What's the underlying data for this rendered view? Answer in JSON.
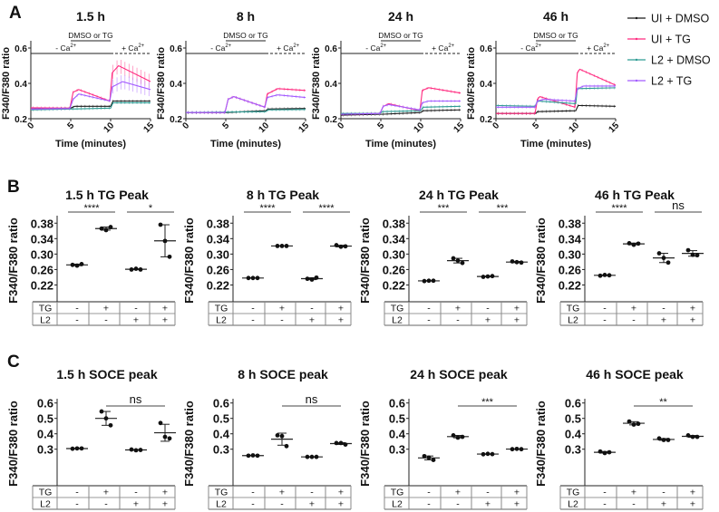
{
  "panel_letters": [
    "A",
    "B",
    "C"
  ],
  "ylabel": "F340/F380 ratio",
  "chart_data": {
    "traces": {
      "type": "line",
      "xlabel": "Time (minutes)",
      "ylabel": "F340/F380 ratio",
      "xlim": [
        0,
        15
      ],
      "ylim": [
        0.2,
        0.6
      ],
      "xticks": [
        "0",
        "5",
        "10",
        "15"
      ],
      "yticks": [
        "0.2",
        "0.4",
        "0.6"
      ],
      "annotation_treatment": "DMSO or TG",
      "annotation_minus_ca": "- Ca",
      "annotation_plus_ca": "+ Ca",
      "ca_superscript": "2+",
      "legend": [
        {
          "name": "UI + DMSO",
          "color": "#1a1a1a"
        },
        {
          "name": "UI + TG",
          "color": "#ff2a7f"
        },
        {
          "name": "L2 + DMSO",
          "color": "#2f9c94"
        },
        {
          "name": "L2 + TG",
          "color": "#a35cff"
        }
      ],
      "panels": [
        {
          "title": "1.5 h",
          "series": [
            [
              [
                0,
                0.255
              ],
              [
                5,
                0.26
              ],
              [
                5.5,
                0.27
              ],
              [
                10,
                0.27
              ],
              [
                10.3,
                0.3
              ],
              [
                15,
                0.3
              ]
            ],
            [
              [
                0,
                0.262
              ],
              [
                4.9,
                0.26
              ],
              [
                5.3,
                0.35
              ],
              [
                6,
                0.365
              ],
              [
                9.9,
                0.3
              ],
              [
                10.2,
                0.46
              ],
              [
                11,
                0.5
              ],
              [
                15,
                0.41
              ]
            ],
            [
              [
                0,
                0.25
              ],
              [
                5,
                0.255
              ],
              [
                10,
                0.26
              ],
              [
                10.3,
                0.29
              ],
              [
                15,
                0.29
              ]
            ],
            [
              [
                0,
                0.255
              ],
              [
                4.9,
                0.258
              ],
              [
                5.3,
                0.31
              ],
              [
                6,
                0.34
              ],
              [
                9.9,
                0.3
              ],
              [
                10.2,
                0.38
              ],
              [
                11.5,
                0.41
              ],
              [
                15,
                0.365
              ]
            ]
          ]
        },
        {
          "title": "8 h",
          "series": [
            [
              [
                0,
                0.235
              ],
              [
                5,
                0.235
              ],
              [
                10,
                0.245
              ],
              [
                10.3,
                0.255
              ],
              [
                15,
                0.258
              ]
            ],
            [
              [
                0,
                0.235
              ],
              [
                4.9,
                0.235
              ],
              [
                5.3,
                0.31
              ],
              [
                6,
                0.325
              ],
              [
                9.9,
                0.265
              ],
              [
                10.2,
                0.34
              ],
              [
                11.5,
                0.37
              ],
              [
                15,
                0.36
              ]
            ],
            [
              [
                0,
                0.235
              ],
              [
                10,
                0.24
              ],
              [
                10.3,
                0.25
              ],
              [
                15,
                0.252
              ]
            ],
            [
              [
                0,
                0.235
              ],
              [
                4.9,
                0.235
              ],
              [
                5.3,
                0.31
              ],
              [
                6,
                0.325
              ],
              [
                9.9,
                0.265
              ],
              [
                10.2,
                0.32
              ],
              [
                11.5,
                0.335
              ],
              [
                15,
                0.32
              ]
            ]
          ]
        },
        {
          "title": "24 h",
          "series": [
            [
              [
                0,
                0.22
              ],
              [
                5,
                0.225
              ],
              [
                10,
                0.235
              ],
              [
                10.3,
                0.245
              ],
              [
                15,
                0.25
              ]
            ],
            [
              [
                0,
                0.225
              ],
              [
                4.9,
                0.23
              ],
              [
                5.3,
                0.27
              ],
              [
                6,
                0.285
              ],
              [
                9.9,
                0.245
              ],
              [
                10.2,
                0.36
              ],
              [
                11,
                0.375
              ],
              [
                15,
                0.345
              ]
            ],
            [
              [
                0,
                0.23
              ],
              [
                4.9,
                0.23
              ],
              [
                5.2,
                0.24
              ],
              [
                10,
                0.245
              ],
              [
                10.3,
                0.265
              ],
              [
                15,
                0.27
              ]
            ],
            [
              [
                0,
                0.225
              ],
              [
                4.9,
                0.23
              ],
              [
                5.3,
                0.27
              ],
              [
                6,
                0.28
              ],
              [
                9.9,
                0.25
              ],
              [
                10.2,
                0.29
              ],
              [
                11,
                0.3
              ],
              [
                15,
                0.3
              ]
            ]
          ]
        },
        {
          "title": "46 h",
          "series": [
            [
              [
                0,
                0.23
              ],
              [
                5,
                0.23
              ],
              [
                5.2,
                0.24
              ],
              [
                10,
                0.245
              ],
              [
                10.3,
                0.275
              ],
              [
                15,
                0.27
              ]
            ],
            [
              [
                0,
                0.23
              ],
              [
                4.9,
                0.23
              ],
              [
                5.2,
                0.31
              ],
              [
                5.5,
                0.325
              ],
              [
                9.9,
                0.265
              ],
              [
                10.2,
                0.46
              ],
              [
                10.5,
                0.48
              ],
              [
                15,
                0.39
              ]
            ],
            [
              [
                0,
                0.275
              ],
              [
                4.9,
                0.27
              ],
              [
                5.2,
                0.3
              ],
              [
                10,
                0.285
              ],
              [
                10.2,
                0.37
              ],
              [
                15,
                0.375
              ]
            ],
            [
              [
                0,
                0.265
              ],
              [
                4.9,
                0.265
              ],
              [
                5.2,
                0.3
              ],
              [
                6,
                0.31
              ],
              [
                9.9,
                0.3
              ],
              [
                10.2,
                0.37
              ],
              [
                11,
                0.385
              ],
              [
                15,
                0.385
              ]
            ]
          ]
        }
      ]
    },
    "tg_peak": {
      "type": "scatter",
      "ylabel": "F340/F380 ratio",
      "ylim": [
        0.2,
        0.39
      ],
      "yticks": [
        "0.22",
        "0.26",
        "0.30",
        "0.34",
        "0.38"
      ],
      "row_labels": [
        "TG",
        "L2"
      ],
      "tg": [
        "-",
        "+",
        "-",
        "+"
      ],
      "l2": [
        "-",
        "-",
        "+",
        "+"
      ],
      "panels": [
        {
          "title": "1.5 h TG Peak",
          "groups": [
            [
              0.272,
              0.27,
              0.274
            ],
            [
              0.366,
              0.362,
              0.37
            ],
            [
              0.26,
              0.262,
              0.26
            ],
            [
              0.376,
              0.334,
              0.293
            ]
          ],
          "sig": [
            {
              "from": 0,
              "to": 1,
              "label": "****"
            },
            {
              "from": 2,
              "to": 3,
              "label": "*"
            }
          ]
        },
        {
          "title": "8 h TG Peak",
          "groups": [
            [
              0.238,
              0.238,
              0.238
            ],
            [
              0.321,
              0.321,
              0.321
            ],
            [
              0.236,
              0.234,
              0.239
            ],
            [
              0.323,
              0.319,
              0.32
            ]
          ],
          "sig": [
            {
              "from": 0,
              "to": 1,
              "label": "****"
            },
            {
              "from": 2,
              "to": 3,
              "label": "****"
            }
          ]
        },
        {
          "title": "24 h TG Peak",
          "groups": [
            [
              0.23,
              0.231,
              0.231
            ],
            [
              0.289,
              0.283,
              0.277
            ],
            [
              0.241,
              0.242,
              0.243
            ],
            [
              0.281,
              0.279,
              0.278
            ]
          ],
          "sig": [
            {
              "from": 0,
              "to": 1,
              "label": "***"
            },
            {
              "from": 2,
              "to": 3,
              "label": "***"
            }
          ]
        },
        {
          "title": "46 h TG Peak",
          "groups": [
            [
              0.244,
              0.246,
              0.245
            ],
            [
              0.328,
              0.324,
              0.327
            ],
            [
              0.302,
              0.29,
              0.278
            ],
            [
              0.31,
              0.298,
              0.297
            ]
          ],
          "sig": [
            {
              "from": 0,
              "to": 1,
              "label": "****"
            },
            {
              "from": 2,
              "to": 3,
              "label": "ns"
            }
          ]
        }
      ]
    },
    "soce_peak": {
      "type": "scatter",
      "ylabel": "F340/F380 ratio",
      "ylim": [
        0.21,
        0.61
      ],
      "yticks": [
        "0.3",
        "0.4",
        "0.5",
        "0.6"
      ],
      "row_labels": [
        "TG",
        "L2"
      ],
      "tg": [
        "-",
        "+",
        "-",
        "+"
      ],
      "l2": [
        "-",
        "-",
        "+",
        "+"
      ],
      "panels": [
        {
          "title": "1.5 h SOCE peak",
          "groups": [
            [
              0.303,
              0.305,
              0.305
            ],
            [
              0.545,
              0.5,
              0.455
            ],
            [
              0.298,
              0.293,
              0.295
            ],
            [
              0.47,
              0.38,
              0.37
            ]
          ],
          "sig": [
            {
              "from": 1,
              "to": 3,
              "label": "ns"
            }
          ]
        },
        {
          "title": "8 h SOCE peak",
          "groups": [
            [
              0.258,
              0.26,
              0.258
            ],
            [
              0.39,
              0.385,
              0.32
            ],
            [
              0.25,
              0.25,
              0.25
            ],
            [
              0.34,
              0.34,
              0.33
            ]
          ],
          "sig": [
            {
              "from": 1,
              "to": 3,
              "label": "ns"
            }
          ]
        },
        {
          "title": "24 h SOCE peak",
          "groups": [
            [
              0.255,
              0.245,
              0.23
            ],
            [
              0.39,
              0.375,
              0.38
            ],
            [
              0.267,
              0.27,
              0.268
            ],
            [
              0.3,
              0.302,
              0.3
            ]
          ],
          "sig": [
            {
              "from": 1,
              "to": 3,
              "label": "***"
            }
          ]
        },
        {
          "title": "46 h SOCE peak",
          "groups": [
            [
              0.285,
              0.275,
              0.28
            ],
            [
              0.48,
              0.46,
              0.465
            ],
            [
              0.37,
              0.36,
              0.36
            ],
            [
              0.39,
              0.38,
              0.38
            ]
          ],
          "sig": [
            {
              "from": 1,
              "to": 3,
              "label": "**"
            }
          ]
        }
      ]
    }
  }
}
